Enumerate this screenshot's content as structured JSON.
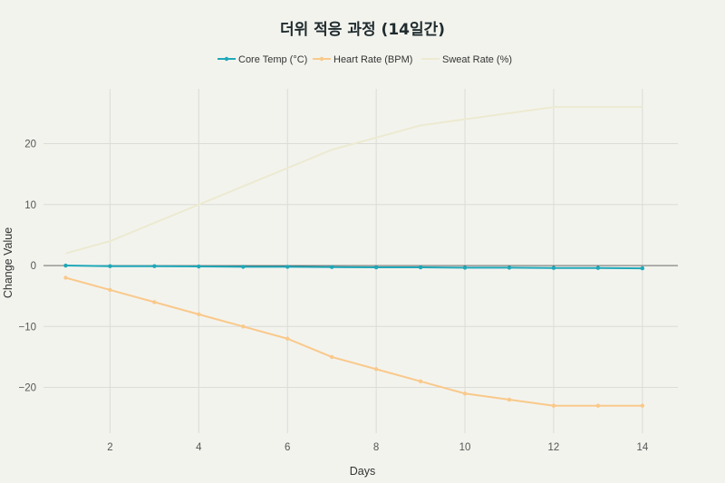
{
  "chart_data": {
    "type": "line",
    "title": "더위 적응 과정 (14일간)",
    "xlabel": "Days",
    "ylabel": "Change Value",
    "xlim": [
      0.5,
      14.8
    ],
    "ylim": [
      -27.5,
      29
    ],
    "x_ticks": [
      2,
      4,
      6,
      8,
      10,
      12,
      14
    ],
    "y_ticks": [
      -20,
      -10,
      0,
      10,
      20
    ],
    "y_tick_labels": [
      "−20",
      "−10",
      "0",
      "10",
      "20"
    ],
    "grid": true,
    "legend_position": "top-center",
    "x": [
      1,
      2,
      3,
      4,
      5,
      6,
      7,
      8,
      9,
      10,
      11,
      12,
      13,
      14
    ],
    "series": [
      {
        "name": "Core Temp (°C)",
        "color": "#1fa8b8",
        "markers": true,
        "values": [
          0,
          -0.1,
          -0.1,
          -0.15,
          -0.2,
          -0.2,
          -0.25,
          -0.3,
          -0.3,
          -0.35,
          -0.35,
          -0.4,
          -0.4,
          -0.45
        ]
      },
      {
        "name": "Heart Rate (BPM)",
        "color": "#f9c98a",
        "markers": true,
        "values": [
          -2,
          -4,
          -6,
          -8,
          -10,
          -12,
          -15,
          -17,
          -19,
          -21,
          -22,
          -23,
          -23,
          -23
        ]
      },
      {
        "name": "Sweat Rate (%)",
        "color": "#ecead0",
        "markers": false,
        "values": [
          2,
          4,
          7,
          10,
          13,
          16,
          19,
          21,
          23,
          24,
          25,
          26,
          26,
          26
        ]
      }
    ]
  }
}
